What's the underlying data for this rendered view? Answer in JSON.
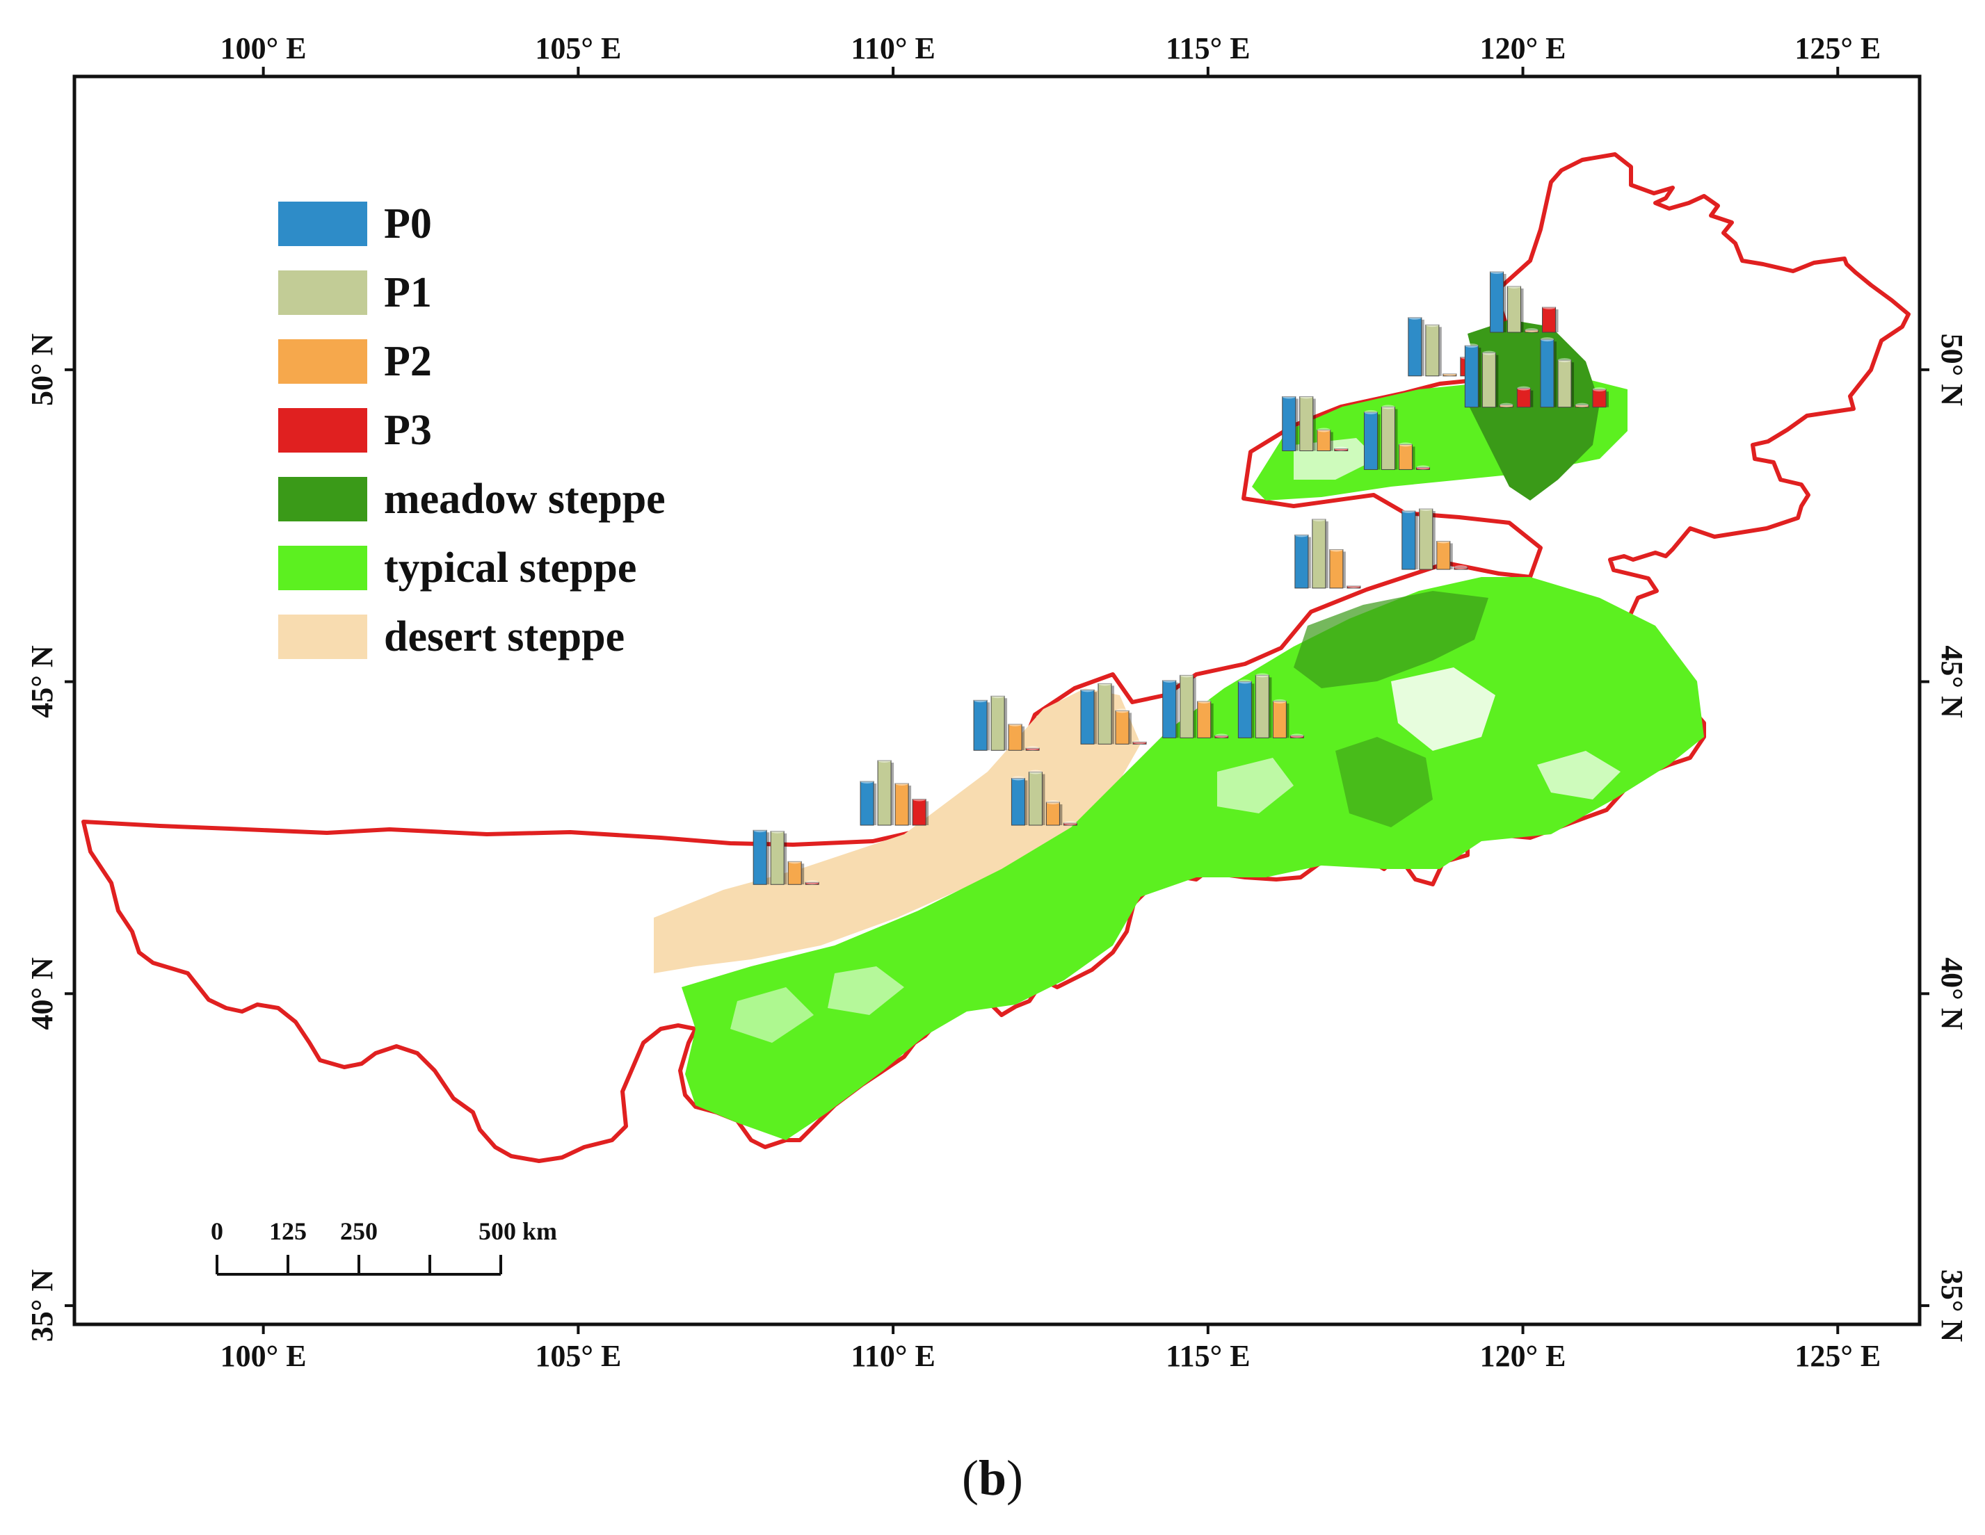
{
  "figure": {
    "panel_label_open": "(",
    "panel_label_letter": "b",
    "panel_label_close": ")"
  },
  "map": {
    "extent": {
      "lon_min": 97,
      "lon_max": 126.3,
      "lat_min": 34.7,
      "lat_max": 54.7
    },
    "lon_ticks": [
      {
        "value": 100,
        "label": "100° E"
      },
      {
        "value": 105,
        "label": "105° E"
      },
      {
        "value": 110,
        "label": "110° E"
      },
      {
        "value": 115,
        "label": "115° E"
      },
      {
        "value": 120,
        "label": "120° E"
      },
      {
        "value": 125,
        "label": "125° E"
      }
    ],
    "lat_ticks": [
      {
        "value": 35,
        "label": "35° N"
      },
      {
        "value": 40,
        "label": "40° N"
      },
      {
        "value": 45,
        "label": "45° N"
      },
      {
        "value": 50,
        "label": "50° N"
      }
    ],
    "boundary_color": "#e02020",
    "colors": {
      "meadow_steppe": "#3a9a18",
      "typical_steppe": "#5cf020",
      "desert_steppe": "#f8dcb0"
    }
  },
  "legend": {
    "items": [
      {
        "key": "P0",
        "label": "P0",
        "color": "#2e8cc8"
      },
      {
        "key": "P1",
        "label": "P1",
        "color": "#c2cc96"
      },
      {
        "key": "P2",
        "label": "P2",
        "color": "#f6a84c"
      },
      {
        "key": "P3",
        "label": "P3",
        "color": "#e02020"
      },
      {
        "key": "meadow",
        "label": "meadow steppe",
        "color": "#3a9a18"
      },
      {
        "key": "typical",
        "label": "typical steppe",
        "color": "#5cf020"
      },
      {
        "key": "desert",
        "label": "desert steppe",
        "color": "#f8dcb0"
      }
    ]
  },
  "scale_bar": {
    "labels": [
      "0",
      "125",
      "250",
      "500 km"
    ],
    "km": [
      0,
      125,
      250,
      500
    ]
  },
  "chart_data": {
    "type": "bar",
    "description_units": "relative bar height (fraction of tallest bar) for periods P0-P3 at each site",
    "series_names": [
      "P0",
      "P1",
      "P2",
      "P3"
    ],
    "sites": [
      {
        "lon": 108.3,
        "lat": 41.75,
        "values": [
          0.52,
          0.51,
          0.22,
          0.02
        ]
      },
      {
        "lon": 110.0,
        "lat": 42.7,
        "values": [
          0.42,
          0.62,
          0.4,
          0.25
        ]
      },
      {
        "lon": 111.8,
        "lat": 43.9,
        "values": [
          0.48,
          0.52,
          0.25,
          0.02
        ]
      },
      {
        "lon": 112.4,
        "lat": 42.7,
        "values": [
          0.45,
          0.51,
          0.22,
          0.02
        ]
      },
      {
        "lon": 113.5,
        "lat": 44.0,
        "values": [
          0.52,
          0.58,
          0.32,
          0.02
        ]
      },
      {
        "lon": 114.8,
        "lat": 44.1,
        "values": [
          0.55,
          0.6,
          0.35,
          0.02
        ]
      },
      {
        "lon": 116.0,
        "lat": 44.1,
        "values": [
          0.54,
          0.6,
          0.35,
          0.02
        ]
      },
      {
        "lon": 116.9,
        "lat": 46.5,
        "values": [
          0.51,
          0.66,
          0.37,
          0.02
        ]
      },
      {
        "lon": 118.6,
        "lat": 46.8,
        "values": [
          0.56,
          0.58,
          0.27,
          0.02
        ]
      },
      {
        "lon": 116.7,
        "lat": 48.7,
        "values": [
          0.52,
          0.52,
          0.2,
          0.02
        ]
      },
      {
        "lon": 118.0,
        "lat": 48.4,
        "values": [
          0.55,
          0.6,
          0.24,
          0.02
        ]
      },
      {
        "lon": 118.7,
        "lat": 49.9,
        "values": [
          0.56,
          0.49,
          0.02,
          0.18
        ]
      },
      {
        "lon": 119.6,
        "lat": 49.4,
        "values": [
          0.59,
          0.52,
          0.02,
          0.18
        ]
      },
      {
        "lon": 120.0,
        "lat": 50.6,
        "values": [
          0.58,
          0.44,
          0.02,
          0.24
        ]
      },
      {
        "lon": 120.8,
        "lat": 49.4,
        "values": [
          0.65,
          0.45,
          0.02,
          0.17
        ]
      }
    ]
  }
}
